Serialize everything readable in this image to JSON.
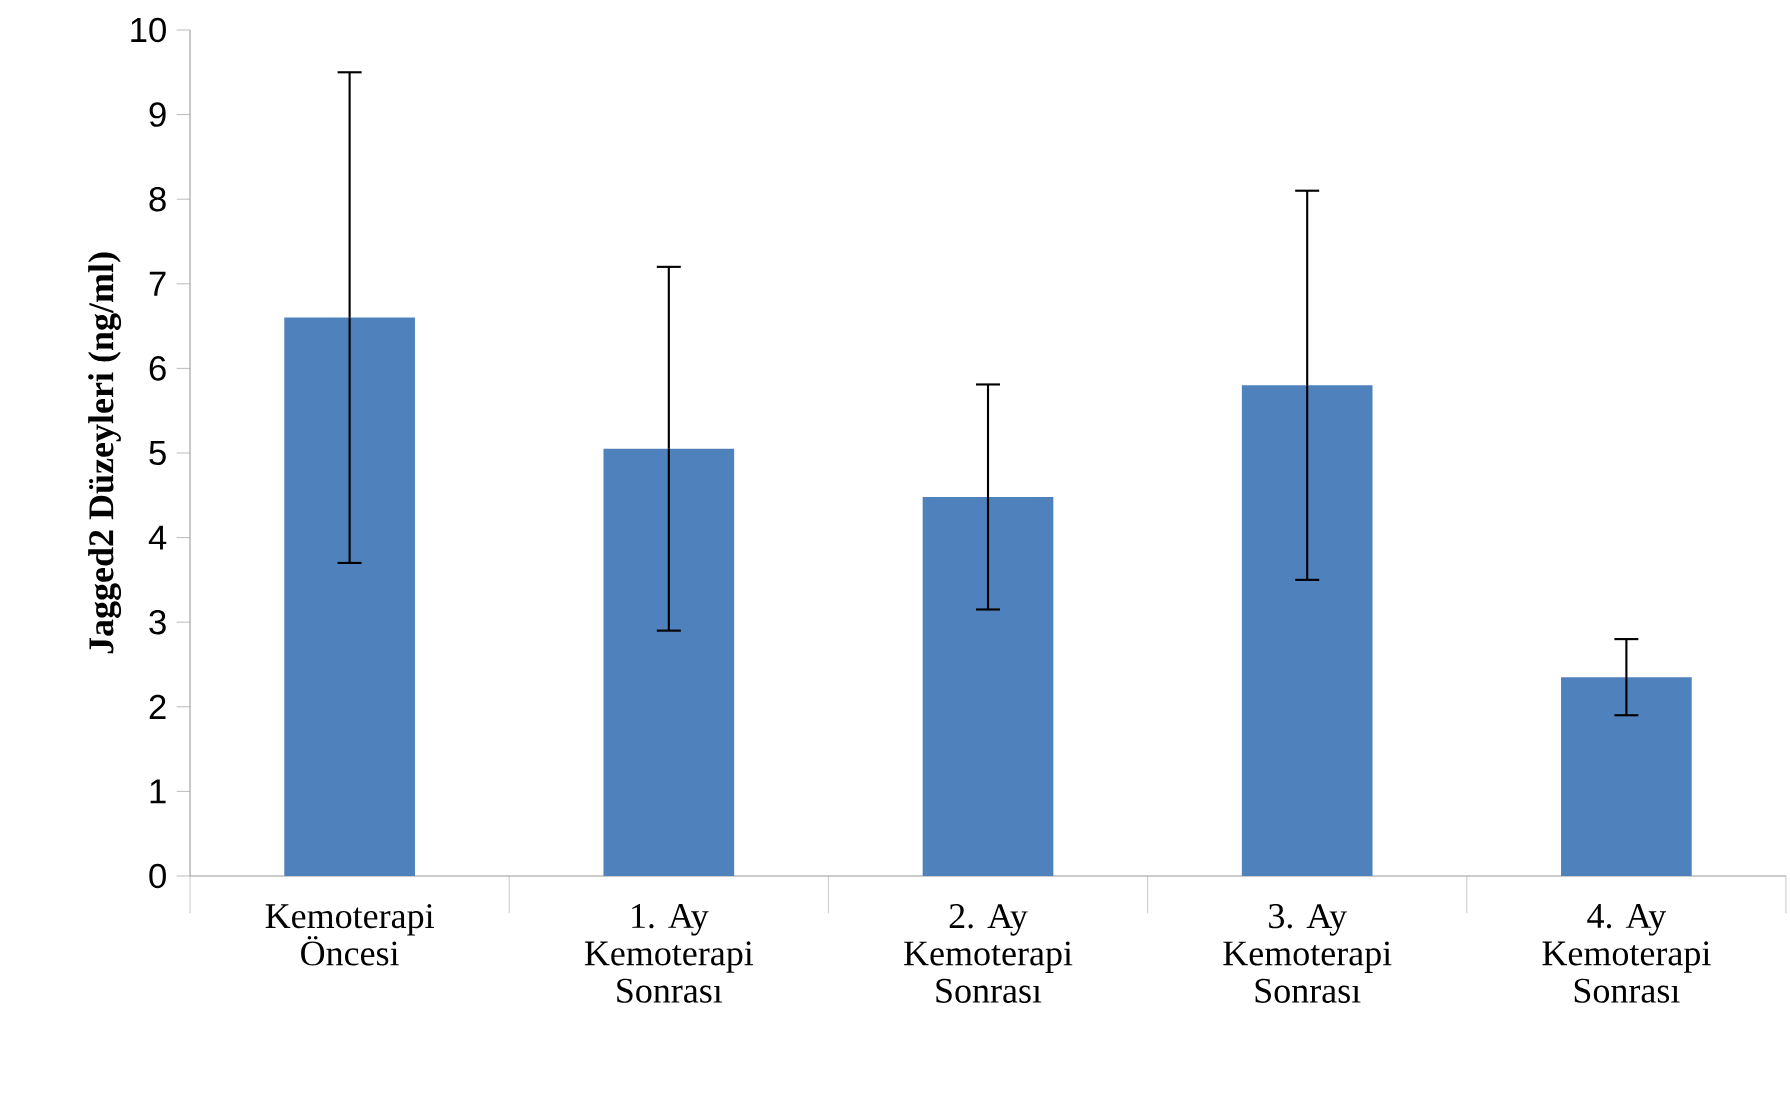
{
  "chart_data": {
    "type": "bar",
    "ylabel": "Jagged2 Düzeyleri (ng/ml)",
    "categories": [
      "Kemoterapi Öncesi",
      "1. Ay Kemoterapi Sonrası",
      "2. Ay Kemoterapi Sonrası",
      "3. Ay Kemoterapi Sonrası",
      "4. Ay Kemoterapi Sonrası"
    ],
    "values": [
      6.6,
      5.05,
      4.48,
      5.8,
      2.35
    ],
    "errors": [
      2.9,
      2.15,
      1.33,
      2.3,
      0.45
    ],
    "color": "#4f81bd",
    "ylim": [
      0,
      10
    ],
    "yticks": [
      0,
      1,
      2,
      3,
      4,
      5,
      6,
      7,
      8,
      9,
      10
    ]
  }
}
